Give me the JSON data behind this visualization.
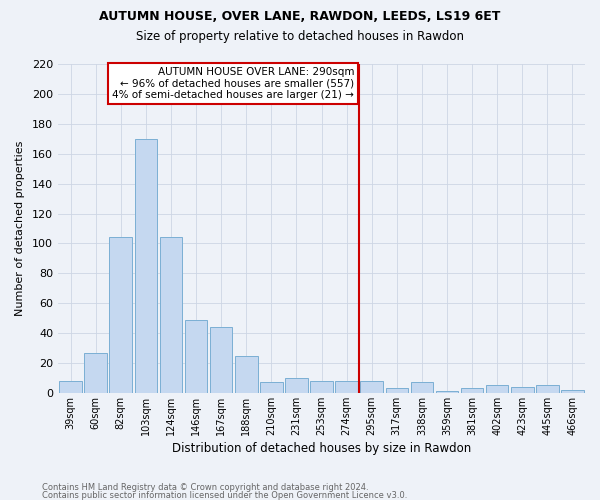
{
  "title1": "AUTUMN HOUSE, OVER LANE, RAWDON, LEEDS, LS19 6ET",
  "title2": "Size of property relative to detached houses in Rawdon",
  "xlabel": "Distribution of detached houses by size in Rawdon",
  "ylabel": "Number of detached properties",
  "footnote1": "Contains HM Land Registry data © Crown copyright and database right 2024.",
  "footnote2": "Contains public sector information licensed under the Open Government Licence v3.0.",
  "categories": [
    "39sqm",
    "60sqm",
    "82sqm",
    "103sqm",
    "124sqm",
    "146sqm",
    "167sqm",
    "188sqm",
    "210sqm",
    "231sqm",
    "253sqm",
    "274sqm",
    "295sqm",
    "317sqm",
    "338sqm",
    "359sqm",
    "381sqm",
    "402sqm",
    "423sqm",
    "445sqm",
    "466sqm"
  ],
  "values": [
    8,
    27,
    104,
    170,
    104,
    49,
    44,
    25,
    7,
    10,
    8,
    8,
    8,
    3,
    7,
    1,
    3,
    5,
    4,
    5,
    2
  ],
  "bar_color": "#c5d8f0",
  "bar_edge_color": "#7bafd4",
  "grid_color": "#cdd6e4",
  "bg_color": "#eef2f8",
  "vline_color": "#cc0000",
  "vline_index": 11.5,
  "annotation_title": "AUTUMN HOUSE OVER LANE: 290sqm",
  "annotation_line1": "← 96% of detached houses are smaller (557)",
  "annotation_line2": "4% of semi-detached houses are larger (21) →",
  "annotation_box_color": "#ffffff",
  "annotation_border_color": "#cc0000",
  "ylim": [
    0,
    220
  ],
  "yticks": [
    0,
    20,
    40,
    60,
    80,
    100,
    120,
    140,
    160,
    180,
    200,
    220
  ]
}
